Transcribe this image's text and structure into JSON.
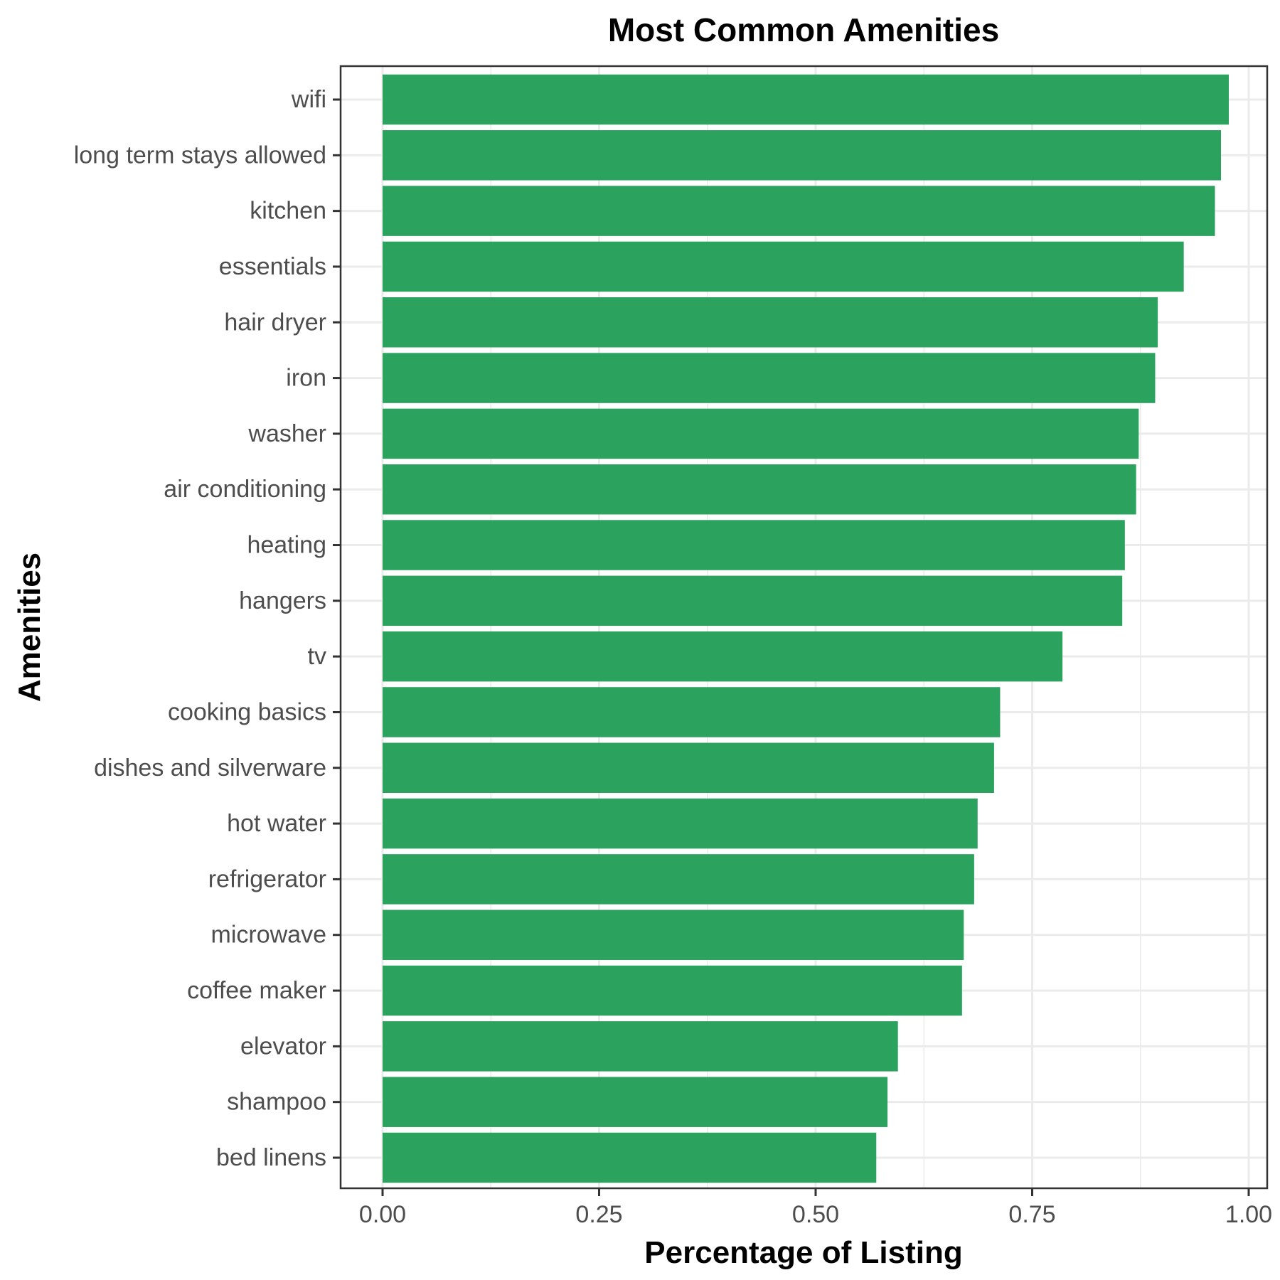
{
  "chart_data": {
    "type": "bar",
    "orientation": "horizontal",
    "title": "Most Common Amenities",
    "xlabel": "Percentage of Listing",
    "ylabel": "Amenities",
    "xlim": [
      0,
      1
    ],
    "x_ticks": [
      0,
      0.25,
      0.5,
      0.75,
      1
    ],
    "x_tick_labels": [
      "0.00",
      "0.25",
      "0.50",
      "0.75",
      "1.00"
    ],
    "grid": true,
    "bar_color": "#2ca25f",
    "categories": [
      "wifi",
      "long term stays allowed",
      "kitchen",
      "essentials",
      "hair dryer",
      "iron",
      "washer",
      "air conditioning",
      "heating",
      "hangers",
      "tv",
      "cooking basics",
      "dishes and silverware",
      "hot water",
      "refrigerator",
      "microwave",
      "coffee maker",
      "elevator",
      "shampoo",
      "bed linens"
    ],
    "values": [
      0.977,
      0.968,
      0.961,
      0.925,
      0.895,
      0.892,
      0.873,
      0.87,
      0.857,
      0.854,
      0.785,
      0.713,
      0.706,
      0.687,
      0.683,
      0.671,
      0.669,
      0.595,
      0.583,
      0.57
    ]
  }
}
